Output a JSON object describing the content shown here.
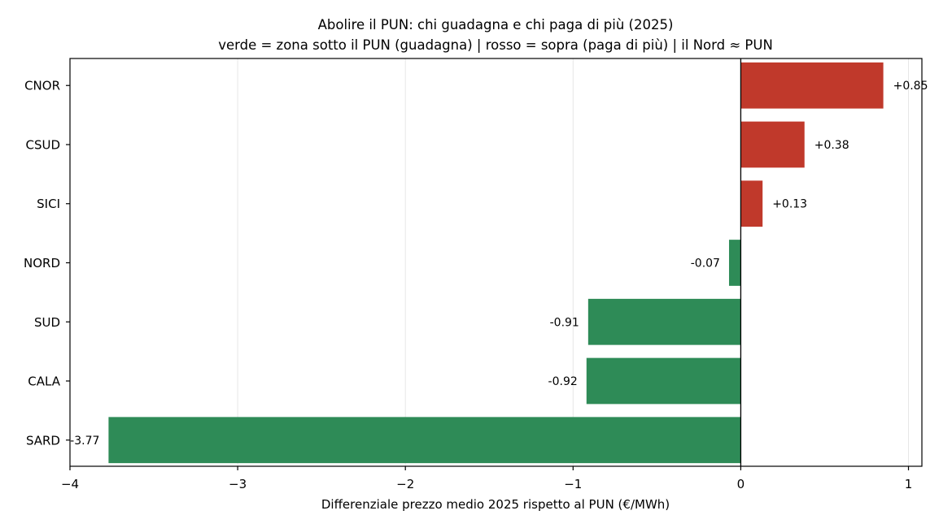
{
  "chart_data": {
    "type": "bar",
    "orientation": "horizontal",
    "title": "Abolire il PUN: chi guadagna e chi paga di più (2025)",
    "subtitle": "verde = zona sotto il PUN (guadagna) | rosso = sopra (paga di più) | il Nord ≈ PUN",
    "xlabel": "Differenziale prezzo medio 2025 rispetto al PUN (€/MWh)",
    "ylabel": "",
    "categories": [
      "CNOR",
      "CSUD",
      "SICI",
      "NORD",
      "SUD",
      "CALA",
      "SARD"
    ],
    "values": [
      0.85,
      0.38,
      0.13,
      -0.07,
      -0.91,
      -0.92,
      -3.77
    ],
    "data_labels": [
      "+0.85",
      "+0.38",
      "+0.13",
      "-0.07",
      "-0.91",
      "-0.92",
      "-3.77"
    ],
    "xlim": [
      -4,
      1.08
    ],
    "xticks": [
      -4,
      -3,
      -2,
      -1,
      0,
      1
    ],
    "xtick_labels": [
      "−4",
      "−3",
      "−2",
      "−1",
      "0",
      "1"
    ],
    "grid": "vertical",
    "colors": {
      "positive": "#c0392b",
      "negative": "#2e8b57",
      "zero_line": "#000000",
      "grid": "#e6e6e6"
    }
  }
}
